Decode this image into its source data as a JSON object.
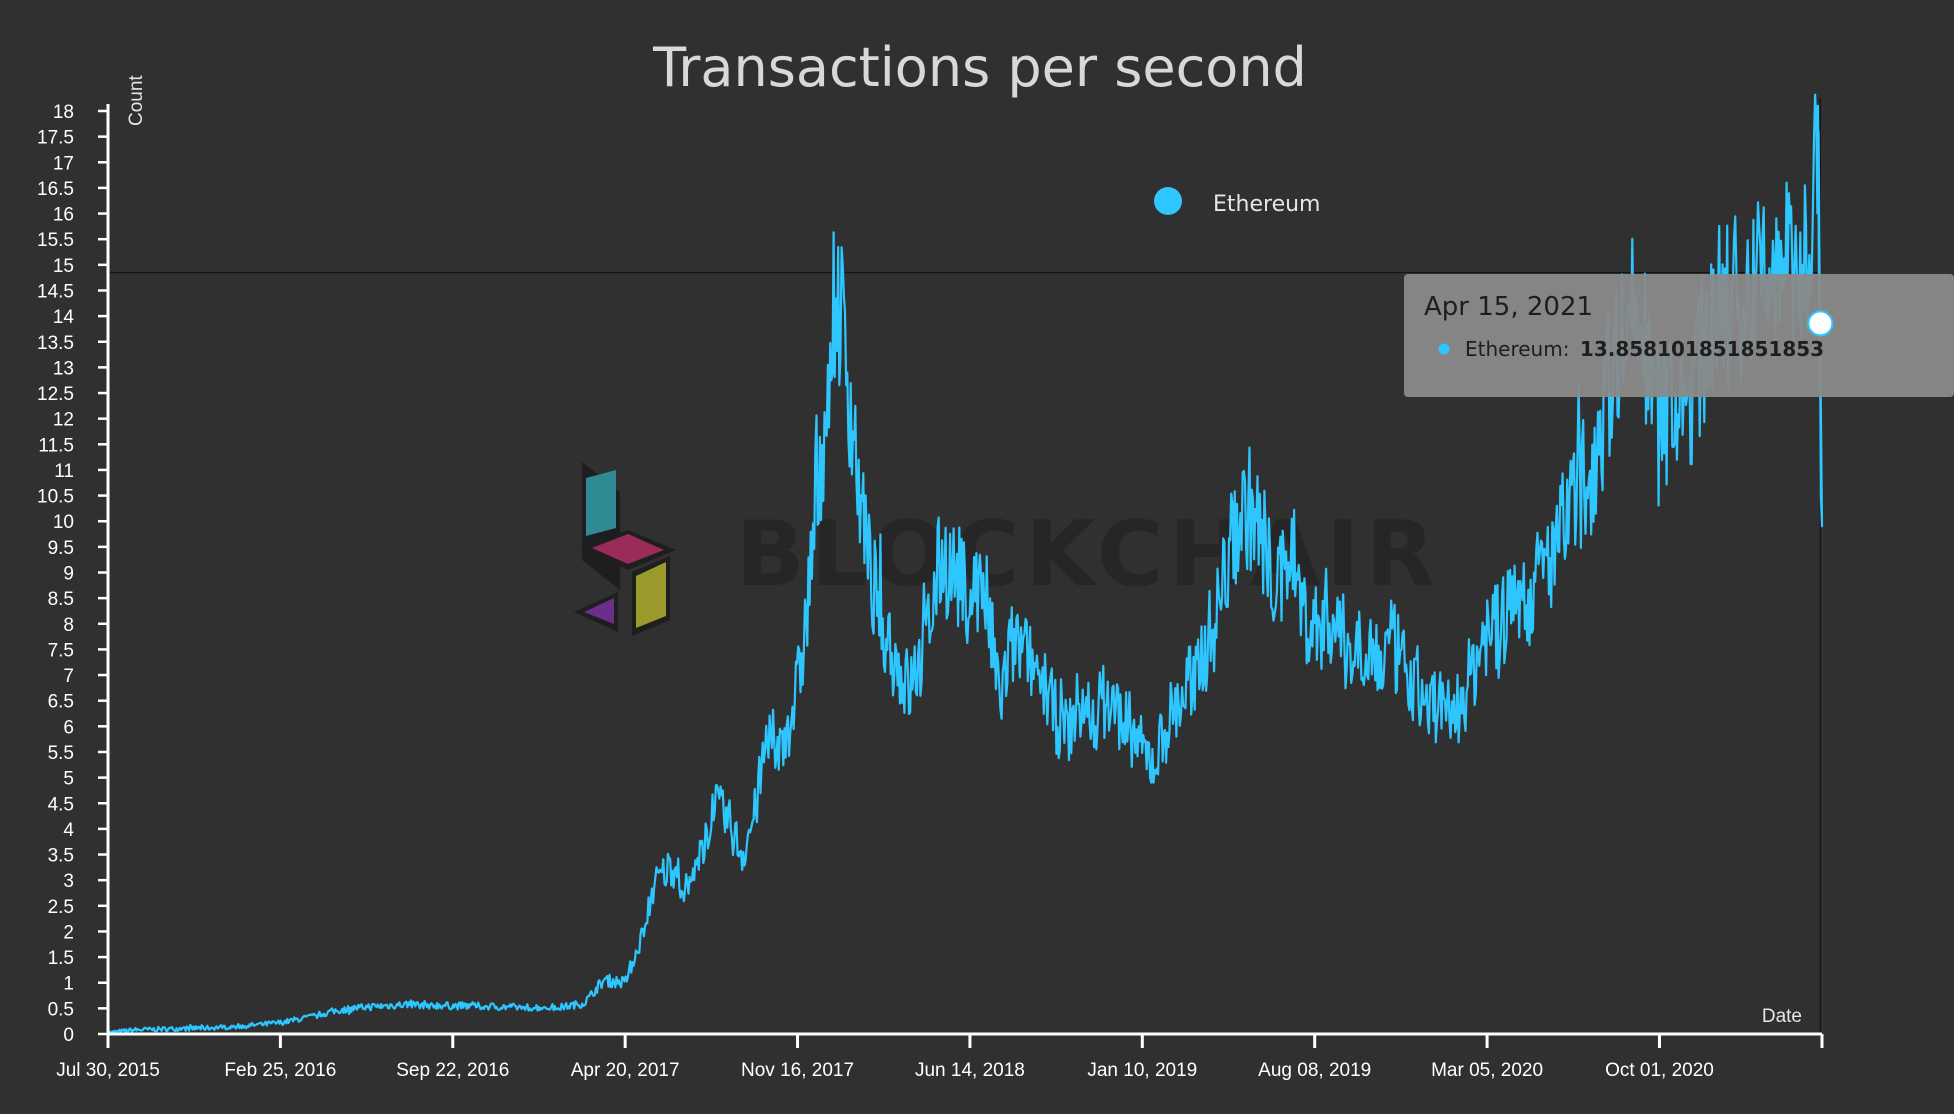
{
  "chart_data": {
    "type": "line",
    "title": "Transactions per second",
    "xlabel": "Date",
    "ylabel": "Count",
    "ylim": [
      0,
      18
    ],
    "yticks": [
      "0",
      "0.5",
      "1",
      "1.5",
      "2",
      "2.5",
      "3",
      "3.5",
      "4",
      "4.5",
      "5",
      "5.5",
      "6",
      "6.5",
      "7",
      "7.5",
      "8",
      "8.5",
      "9",
      "9.5",
      "10",
      "10.5",
      "11",
      "11.5",
      "12",
      "12.5",
      "13",
      "13.5",
      "14",
      "14.5",
      "15",
      "15.5",
      "16",
      "16.5",
      "17",
      "17.5",
      "18"
    ],
    "xticks": [
      "Jul 30, 2015",
      "Feb 25, 2016",
      "Sep 22, 2016",
      "Apr 20, 2017",
      "Nov 16, 2017",
      "Jun 14, 2018",
      "Jan 10, 2019",
      "Aug 08, 2019",
      "Mar 05, 2020",
      "Oct 01, 2020"
    ],
    "xlim": [
      "2015-07-30",
      "2021-04-17"
    ],
    "grid": false,
    "legend": {
      "position": "top-center"
    },
    "series": [
      {
        "name": "Ethereum",
        "color": "#2ec6ff",
        "points": [
          [
            "2015-07-30",
            0.02
          ],
          [
            "2015-09-01",
            0.08
          ],
          [
            "2015-10-15",
            0.1
          ],
          [
            "2015-12-01",
            0.12
          ],
          [
            "2016-01-15",
            0.16
          ],
          [
            "2016-02-25",
            0.22
          ],
          [
            "2016-04-01",
            0.33
          ],
          [
            "2016-05-01",
            0.45
          ],
          [
            "2016-06-01",
            0.52
          ],
          [
            "2016-07-01",
            0.55
          ],
          [
            "2016-08-01",
            0.58
          ],
          [
            "2016-09-22",
            0.55
          ],
          [
            "2016-11-01",
            0.54
          ],
          [
            "2016-12-15",
            0.52
          ],
          [
            "2017-01-31",
            0.52
          ],
          [
            "2017-03-01",
            0.6
          ],
          [
            "2017-03-25",
            1.05
          ],
          [
            "2017-04-20",
            1.0
          ],
          [
            "2017-05-10",
            1.9
          ],
          [
            "2017-05-25",
            2.9
          ],
          [
            "2017-06-15",
            3.3
          ],
          [
            "2017-07-05",
            2.8
          ],
          [
            "2017-07-20",
            3.4
          ],
          [
            "2017-08-05",
            4.5
          ],
          [
            "2017-08-25",
            4.1
          ],
          [
            "2017-09-10",
            3.5
          ],
          [
            "2017-09-25",
            4.3
          ],
          [
            "2017-10-10",
            5.8
          ],
          [
            "2017-10-25",
            5.5
          ],
          [
            "2017-11-16",
            6.7
          ],
          [
            "2017-11-28",
            8.3
          ],
          [
            "2017-12-10",
            10.7
          ],
          [
            "2017-12-25",
            12.7
          ],
          [
            "2018-01-04",
            14.5
          ],
          [
            "2018-01-12",
            13.5
          ],
          [
            "2018-01-25",
            11.5
          ],
          [
            "2018-02-10",
            9.0
          ],
          [
            "2018-02-25",
            8.3
          ],
          [
            "2018-03-15",
            7.3
          ],
          [
            "2018-04-01",
            6.7
          ],
          [
            "2018-04-20",
            7.5
          ],
          [
            "2018-05-10",
            9.3
          ],
          [
            "2018-05-25",
            9.0
          ],
          [
            "2018-06-14",
            8.6
          ],
          [
            "2018-07-01",
            8.8
          ],
          [
            "2018-07-20",
            6.5
          ],
          [
            "2018-08-05",
            7.6
          ],
          [
            "2018-08-25",
            7.3
          ],
          [
            "2018-09-10",
            7.0
          ],
          [
            "2018-09-25",
            6.2
          ],
          [
            "2018-10-10",
            5.9
          ],
          [
            "2018-10-25",
            6.4
          ],
          [
            "2018-11-10",
            6.2
          ],
          [
            "2018-11-25",
            6.5
          ],
          [
            "2018-12-10",
            6.3
          ],
          [
            "2018-12-25",
            6.0
          ],
          [
            "2019-01-10",
            5.5
          ],
          [
            "2019-01-25",
            5.3
          ],
          [
            "2019-02-10",
            6.1
          ],
          [
            "2019-03-01",
            6.6
          ],
          [
            "2019-03-20",
            7.2
          ],
          [
            "2019-04-10",
            8.1
          ],
          [
            "2019-05-01",
            9.8
          ],
          [
            "2019-05-20",
            10.3
          ],
          [
            "2019-06-10",
            9.5
          ],
          [
            "2019-06-25",
            8.5
          ],
          [
            "2019-07-10",
            9.7
          ],
          [
            "2019-07-25",
            8.2
          ],
          [
            "2019-08-08",
            7.9
          ],
          [
            "2019-08-25",
            8.2
          ],
          [
            "2019-09-10",
            7.7
          ],
          [
            "2019-09-25",
            7.4
          ],
          [
            "2019-10-10",
            7.8
          ],
          [
            "2019-10-25",
            7.2
          ],
          [
            "2019-11-10",
            7.6
          ],
          [
            "2019-11-25",
            7.1
          ],
          [
            "2019-12-10",
            6.8
          ],
          [
            "2019-12-25",
            6.4
          ],
          [
            "2020-01-10",
            6.5
          ],
          [
            "2020-01-25",
            6.2
          ],
          [
            "2020-02-10",
            6.8
          ],
          [
            "2020-02-25",
            7.5
          ],
          [
            "2020-03-05",
            8.0
          ],
          [
            "2020-03-20",
            7.8
          ],
          [
            "2020-04-10",
            8.7
          ],
          [
            "2020-04-25",
            8.5
          ],
          [
            "2020-05-10",
            9.0
          ],
          [
            "2020-05-25",
            9.4
          ],
          [
            "2020-06-10",
            10.0
          ],
          [
            "2020-06-25",
            10.6
          ],
          [
            "2020-07-10",
            11.0
          ],
          [
            "2020-07-25",
            12.3
          ],
          [
            "2020-08-10",
            13.4
          ],
          [
            "2020-08-25",
            14.1
          ],
          [
            "2020-09-10",
            13.7
          ],
          [
            "2020-09-20",
            12.6
          ],
          [
            "2020-10-01",
            12.4
          ],
          [
            "2020-10-15",
            12.2
          ],
          [
            "2020-11-01",
            12.1
          ],
          [
            "2020-11-15",
            12.8
          ],
          [
            "2020-12-01",
            13.9
          ],
          [
            "2020-12-15",
            14.1
          ],
          [
            "2021-01-01",
            14.3
          ],
          [
            "2021-01-20",
            14.6
          ],
          [
            "2021-02-05",
            14.9
          ],
          [
            "2021-02-20",
            14.4
          ],
          [
            "2021-03-05",
            15.1
          ],
          [
            "2021-03-20",
            14.8
          ],
          [
            "2021-04-01",
            15.4
          ],
          [
            "2021-04-08",
            16.5
          ],
          [
            "2021-04-12",
            18.1
          ],
          [
            "2021-04-14",
            13.0
          ],
          [
            "2021-04-15",
            13.86
          ],
          [
            "2021-04-16",
            10.3
          ]
        ]
      }
    ],
    "tooltip": {
      "date": "Apr 15, 2021",
      "series_name": "Ethereum",
      "label": "Ethereum:",
      "value": "13.858101851851853",
      "y": 13.858101851851853
    }
  },
  "watermark": {
    "text": "BLOCKCHAIR",
    "icon": "blockchair-logo-icon"
  },
  "colors": {
    "background": "#303030",
    "axis": "#ffffff",
    "line": "#2ec6ff",
    "tooltip_bg": "#8a8a8a"
  }
}
